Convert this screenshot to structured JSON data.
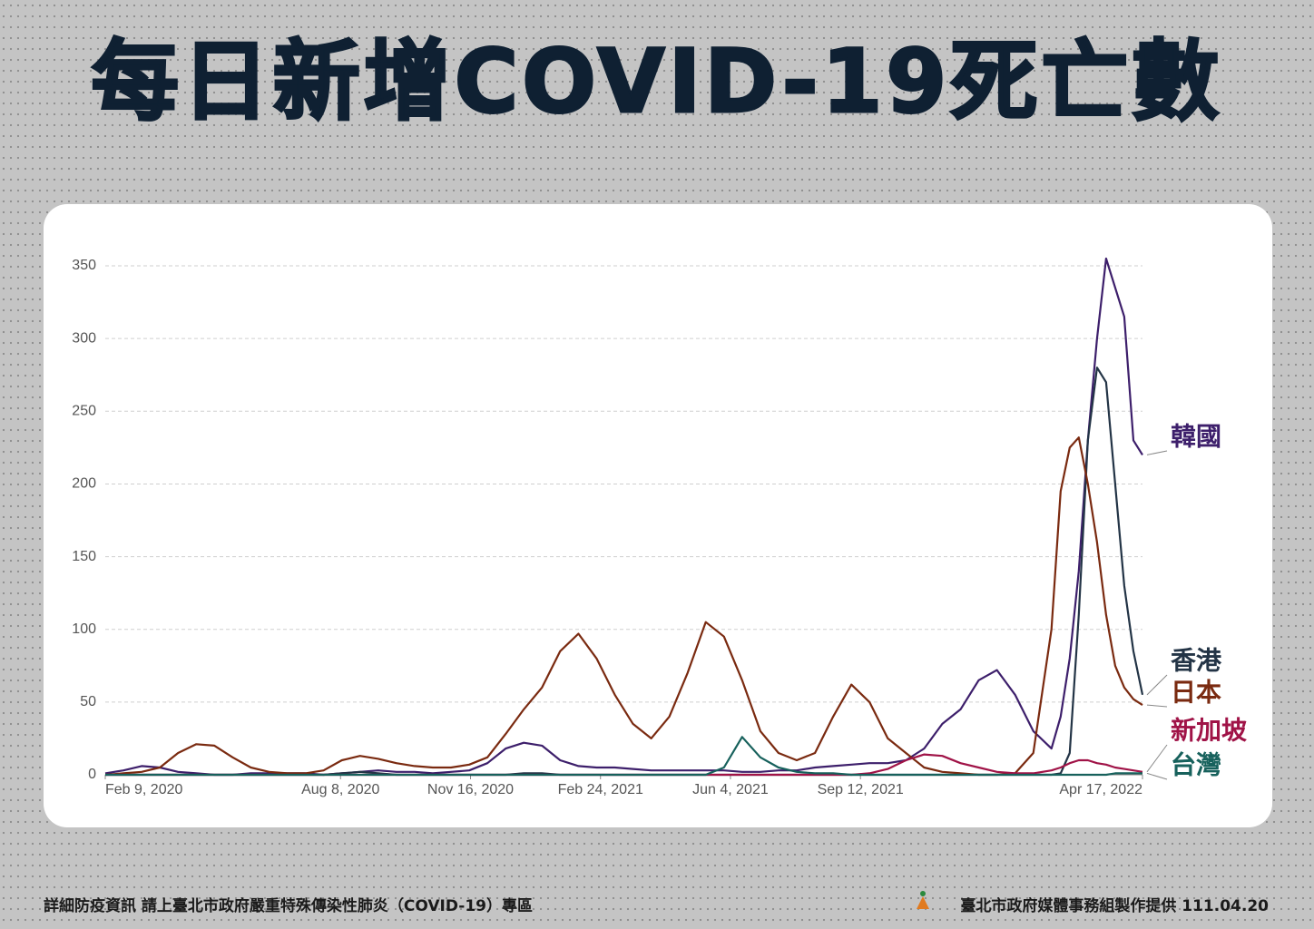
{
  "title": "每日新增COVID-19死亡數",
  "footer": {
    "note": "詳細防疫資訊 請上臺北市政府嚴重特殊傳染性肺炎（COVID-19）專區",
    "credit": "臺北市政府媒體事務組製作提供 111.04.20"
  },
  "chart_data": {
    "type": "line",
    "x": [
      "2020-02-09",
      "2020-02-23",
      "2020-03-08",
      "2020-03-22",
      "2020-04-05",
      "2020-04-19",
      "2020-05-03",
      "2020-05-17",
      "2020-05-31",
      "2020-06-14",
      "2020-06-28",
      "2020-07-12",
      "2020-07-26",
      "2020-08-09",
      "2020-08-23",
      "2020-09-06",
      "2020-09-20",
      "2020-10-04",
      "2020-10-18",
      "2020-11-01",
      "2020-11-15",
      "2020-11-29",
      "2020-12-13",
      "2020-12-27",
      "2021-01-10",
      "2021-01-24",
      "2021-02-07",
      "2021-02-21",
      "2021-03-07",
      "2021-03-21",
      "2021-04-04",
      "2021-04-18",
      "2021-05-02",
      "2021-05-16",
      "2021-05-30",
      "2021-06-13",
      "2021-06-27",
      "2021-07-11",
      "2021-07-25",
      "2021-08-08",
      "2021-08-22",
      "2021-09-05",
      "2021-09-19",
      "2021-10-03",
      "2021-10-17",
      "2021-10-31",
      "2021-11-14",
      "2021-11-28",
      "2021-12-12",
      "2021-12-26",
      "2022-01-09",
      "2022-01-23",
      "2022-02-06",
      "2022-02-13",
      "2022-02-20",
      "2022-02-27",
      "2022-03-06",
      "2022-03-13",
      "2022-03-20",
      "2022-03-27",
      "2022-04-03",
      "2022-04-10",
      "2022-04-17"
    ],
    "xlim": [
      "2020-02-09",
      "2022-04-17"
    ],
    "xticks": [
      {
        "value": "2020-02-09",
        "label": "Feb 9, 2020"
      },
      {
        "value": "2020-08-08",
        "label": "Aug 8, 2020"
      },
      {
        "value": "2020-11-16",
        "label": "Nov 16, 2020"
      },
      {
        "value": "2021-02-24",
        "label": "Feb 24, 2021"
      },
      {
        "value": "2021-06-04",
        "label": "Jun 4, 2021"
      },
      {
        "value": "2021-09-12",
        "label": "Sep 12, 2021"
      },
      {
        "value": "2022-04-17",
        "label": "Apr 17, 2022"
      }
    ],
    "ylim": [
      0,
      360
    ],
    "yticks": [
      0,
      50,
      100,
      150,
      200,
      250,
      300,
      350
    ],
    "grid": true,
    "series": [
      {
        "name": "韓國",
        "color": "#3d1f6b",
        "values": [
          1,
          3,
          6,
          5,
          2,
          1,
          0,
          0,
          1,
          1,
          1,
          1,
          0,
          1,
          2,
          3,
          2,
          2,
          1,
          2,
          3,
          8,
          18,
          22,
          20,
          10,
          6,
          5,
          5,
          4,
          3,
          3,
          3,
          3,
          3,
          2,
          2,
          3,
          3,
          5,
          6,
          7,
          8,
          8,
          10,
          18,
          35,
          45,
          65,
          72,
          55,
          30,
          18,
          40,
          80,
          140,
          230,
          300,
          355,
          335,
          315,
          230,
          220
        ]
      },
      {
        "name": "香港",
        "color": "#233446",
        "values": [
          0,
          0,
          0,
          0,
          0,
          0,
          0,
          0,
          0,
          0,
          0,
          0,
          0,
          1,
          2,
          1,
          0,
          0,
          0,
          0,
          0,
          0,
          0,
          1,
          1,
          0,
          0,
          0,
          0,
          0,
          0,
          0,
          0,
          0,
          0,
          0,
          0,
          0,
          0,
          0,
          0,
          0,
          0,
          0,
          0,
          0,
          0,
          0,
          0,
          0,
          0,
          0,
          0,
          1,
          15,
          110,
          230,
          280,
          270,
          200,
          130,
          85,
          55
        ]
      },
      {
        "name": "日本",
        "color": "#7a2a10",
        "values": [
          0,
          1,
          2,
          5,
          15,
          21,
          20,
          12,
          5,
          2,
          1,
          1,
          3,
          10,
          13,
          11,
          8,
          6,
          5,
          5,
          7,
          12,
          28,
          45,
          60,
          85,
          97,
          80,
          55,
          35,
          25,
          40,
          70,
          105,
          95,
          65,
          30,
          15,
          10,
          15,
          40,
          62,
          50,
          25,
          15,
          5,
          2,
          1,
          0,
          0,
          1,
          15,
          100,
          195,
          225,
          232,
          200,
          160,
          110,
          75,
          60,
          52,
          48
        ]
      },
      {
        "name": "新加坡",
        "color": "#a01347",
        "values": [
          0,
          0,
          0,
          0,
          0,
          0,
          0,
          0,
          0,
          0,
          0,
          0,
          0,
          0,
          0,
          0,
          0,
          0,
          0,
          0,
          0,
          0,
          0,
          0,
          0,
          0,
          0,
          0,
          0,
          0,
          0,
          0,
          0,
          0,
          0,
          0,
          0,
          0,
          0,
          0,
          0,
          0,
          1,
          4,
          10,
          14,
          13,
          8,
          5,
          2,
          1,
          1,
          3,
          5,
          8,
          10,
          10,
          8,
          7,
          5,
          4,
          3,
          2
        ]
      },
      {
        "name": "台灣",
        "color": "#17615c",
        "values": [
          0,
          0,
          0,
          0,
          0,
          0,
          0,
          0,
          0,
          0,
          0,
          0,
          0,
          0,
          0,
          0,
          0,
          0,
          0,
          0,
          0,
          0,
          0,
          0,
          0,
          0,
          0,
          0,
          0,
          0,
          0,
          0,
          0,
          0,
          5,
          26,
          12,
          5,
          2,
          1,
          1,
          0,
          0,
          0,
          0,
          0,
          0,
          0,
          0,
          0,
          0,
          0,
          0,
          0,
          0,
          0,
          0,
          0,
          0,
          1,
          1,
          1,
          1
        ]
      }
    ]
  }
}
